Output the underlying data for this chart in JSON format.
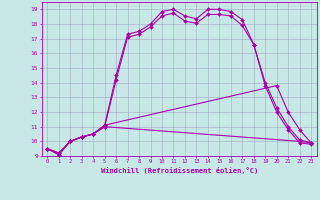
{
  "xlabel": "Windchill (Refroidissement éolien,°C)",
  "xlim": [
    -0.5,
    23.5
  ],
  "ylim": [
    9,
    19.5
  ],
  "yticks": [
    9,
    10,
    11,
    12,
    13,
    14,
    15,
    16,
    17,
    18,
    19
  ],
  "xticks": [
    0,
    1,
    2,
    3,
    4,
    5,
    6,
    7,
    8,
    9,
    10,
    11,
    12,
    13,
    14,
    15,
    16,
    17,
    18,
    19,
    20,
    21,
    22,
    23
  ],
  "bg_color": "#c8e8e8",
  "grid_color": "#9999bb",
  "line_color": "#aa00aa",
  "line1_x": [
    0,
    1,
    2,
    3,
    4,
    5,
    6,
    7,
    8,
    9,
    10,
    11,
    12,
    13,
    14,
    15,
    16,
    17,
    18,
    19,
    20,
    21,
    22,
    23
  ],
  "line1_y": [
    9.5,
    9.1,
    10.0,
    10.3,
    10.5,
    11.1,
    14.5,
    17.3,
    17.5,
    18.0,
    18.85,
    19.0,
    18.55,
    18.35,
    19.0,
    19.0,
    18.85,
    18.3,
    16.6,
    13.8,
    12.0,
    10.8,
    9.9,
    9.8
  ],
  "line2_x": [
    0,
    1,
    2,
    3,
    4,
    5,
    6,
    7,
    8,
    9,
    10,
    11,
    12,
    13,
    14,
    15,
    16,
    17,
    18,
    19,
    20,
    21,
    22,
    23
  ],
  "line2_y": [
    9.5,
    9.1,
    10.0,
    10.3,
    10.5,
    11.0,
    14.2,
    17.1,
    17.3,
    17.8,
    18.55,
    18.75,
    18.2,
    18.05,
    18.65,
    18.65,
    18.55,
    17.9,
    16.6,
    14.0,
    12.3,
    11.0,
    10.1,
    9.9
  ],
  "line3_x": [
    0,
    1,
    2,
    3,
    4,
    5,
    22,
    23
  ],
  "line3_y": [
    9.5,
    9.2,
    10.0,
    10.3,
    10.5,
    11.0,
    10.0,
    9.9
  ],
  "line4_x": [
    0,
    1,
    2,
    3,
    4,
    5,
    20,
    21,
    22,
    23
  ],
  "line4_y": [
    9.5,
    9.2,
    10.0,
    10.3,
    10.5,
    11.1,
    13.8,
    12.0,
    10.8,
    9.9
  ]
}
